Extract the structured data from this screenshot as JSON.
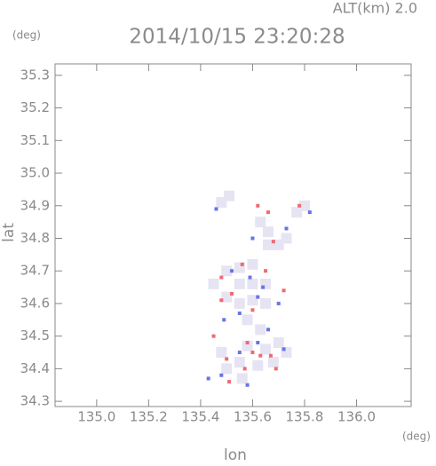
{
  "chart_data": {
    "type": "scatter",
    "title": "2014/10/15 23:20:28",
    "annotation": "ALT(km)  2.0",
    "xlabel": "lon",
    "ylabel": "lat",
    "xunit": "(deg)",
    "yunit": "(deg)",
    "xlim": [
      134.84,
      136.21
    ],
    "ylim": [
      34.284,
      35.335
    ],
    "xticks": [
      {
        "value": 135,
        "label": "135.0"
      },
      135.2,
      135.4,
      135.6,
      135.8,
      {
        "value": 136,
        "label": "136.0"
      }
    ],
    "yticks": [
      34.3,
      34.4,
      34.5,
      34.6,
      34.7,
      34.8,
      34.9,
      {
        "value": 35,
        "label": "35.0"
      },
      35.1,
      35.2,
      35.3
    ],
    "series": [
      {
        "color": "#e6e4f3",
        "marker_size": 12,
        "x": [
          135.48,
          135.51,
          135.63,
          135.66,
          135.66,
          135.7,
          135.73,
          135.77,
          135.8,
          135.5,
          135.55,
          135.6,
          135.55,
          135.6,
          135.65,
          135.45,
          135.5,
          135.55,
          135.6,
          135.65,
          135.58,
          135.63,
          135.7,
          135.65,
          135.58,
          135.55,
          135.62,
          135.68,
          135.5,
          135.56,
          135.48,
          135.73
        ],
        "y": [
          34.91,
          34.93,
          34.85,
          34.82,
          34.78,
          34.78,
          34.8,
          34.88,
          34.9,
          34.7,
          34.71,
          34.72,
          34.66,
          34.66,
          34.66,
          34.66,
          34.62,
          34.6,
          34.61,
          34.6,
          34.55,
          34.52,
          34.48,
          34.46,
          34.47,
          34.42,
          34.41,
          34.42,
          34.4,
          34.37,
          34.45,
          34.45
        ]
      },
      {
        "color": "#ef6a72",
        "marker_size": 4,
        "x": [
          135.62,
          135.66,
          135.68,
          135.78,
          135.48,
          135.56,
          135.65,
          135.72,
          135.52,
          135.6,
          135.48,
          135.58,
          135.63,
          135.67,
          135.69,
          135.57,
          135.5,
          135.45,
          135.51,
          135.6
        ],
        "y": [
          34.9,
          34.88,
          34.79,
          34.9,
          34.68,
          34.72,
          34.7,
          34.64,
          34.63,
          34.58,
          34.61,
          34.48,
          34.44,
          34.44,
          34.4,
          34.4,
          34.43,
          34.5,
          34.36,
          34.45
        ]
      },
      {
        "color": "#6874e6",
        "marker_size": 4,
        "x": [
          135.46,
          135.82,
          135.73,
          135.6,
          135.52,
          135.59,
          135.62,
          135.55,
          135.49,
          135.66,
          135.62,
          135.55,
          135.72,
          135.48,
          135.43,
          135.58,
          135.64,
          135.7
        ],
        "y": [
          34.89,
          34.88,
          34.83,
          34.8,
          34.7,
          34.68,
          34.62,
          34.57,
          34.55,
          34.52,
          34.48,
          34.45,
          34.46,
          34.38,
          34.37,
          34.35,
          34.65,
          34.6
        ]
      }
    ]
  }
}
